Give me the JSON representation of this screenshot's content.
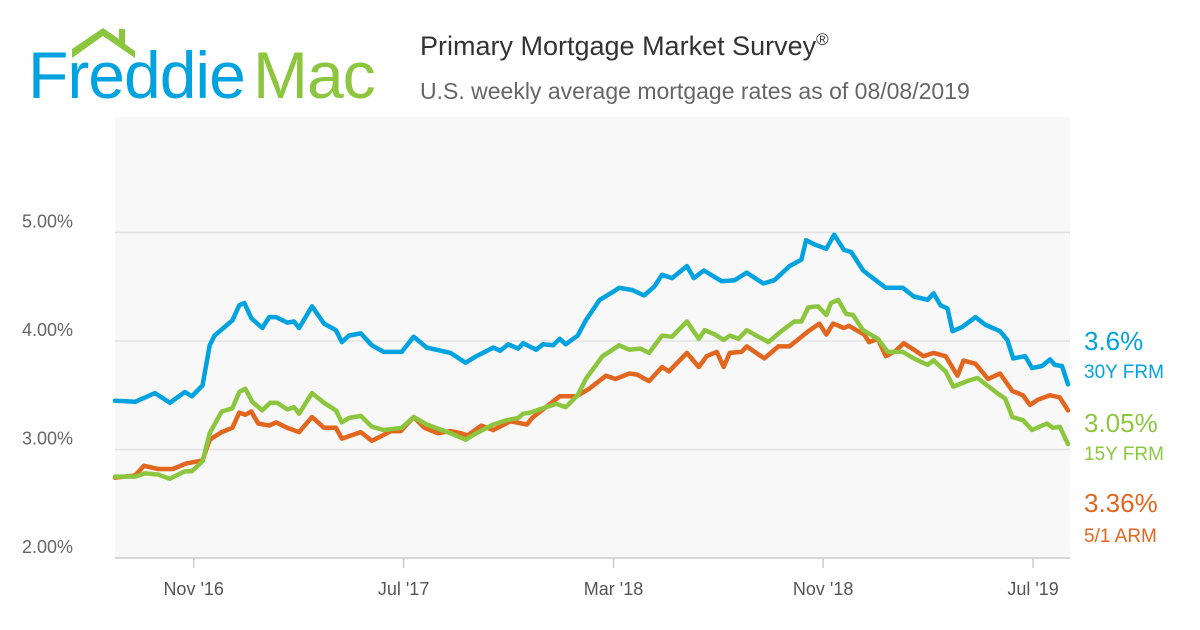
{
  "logo": {
    "text_part1": "Freddie",
    "text_part2": "Mac"
  },
  "header": {
    "title": "Primary Mortgage Market Survey",
    "registered": "®",
    "subtitle": "U.S. weekly average mortgage rates as of 08/08/2019"
  },
  "colors": {
    "frm30": "#00a3e0",
    "frm15": "#8cc63f",
    "arm51": "#e2661e",
    "logo_blue": "#00a3e0",
    "logo_green": "#8cc63f"
  },
  "chart_data": {
    "type": "line",
    "title": "Primary Mortgage Market Survey",
    "xlabel": "",
    "ylabel": "",
    "x_units": "decimal year",
    "xlim": [
      2016.583,
      2019.611
    ],
    "ylim": [
      2.0,
      5.3
    ],
    "grid": true,
    "y_ticks": [
      {
        "value": 2,
        "label": "2.00%"
      },
      {
        "value": 3,
        "label": "3.00%"
      },
      {
        "value": 4,
        "label": "4.00%"
      },
      {
        "value": 5,
        "label": "5.00%"
      }
    ],
    "x_ticks": [
      {
        "value": 2016.833,
        "label": "Nov '16"
      },
      {
        "value": 2017.5,
        "label": "Jul '17"
      },
      {
        "value": 2018.167,
        "label": "Mar '18"
      },
      {
        "value": 2018.833,
        "label": "Nov '18"
      },
      {
        "value": 2019.5,
        "label": "Jul '19"
      }
    ],
    "series": [
      {
        "name": "30Y FRM",
        "end_label": "3.6%",
        "color_key": "frm30",
        "points": [
          [
            2016.583,
            3.45
          ],
          [
            2016.647,
            3.44
          ],
          [
            2016.71,
            3.52
          ],
          [
            2016.757,
            3.43
          ],
          [
            2016.805,
            3.53
          ],
          [
            2016.827,
            3.49
          ],
          [
            2016.861,
            3.59
          ],
          [
            2016.884,
            3.96
          ],
          [
            2016.899,
            4.05
          ],
          [
            2016.956,
            4.19
          ],
          [
            2016.978,
            4.33
          ],
          [
            2016.994,
            4.35
          ],
          [
            2017.016,
            4.21
          ],
          [
            2017.051,
            4.12
          ],
          [
            2017.073,
            4.22
          ],
          [
            2017.095,
            4.22
          ],
          [
            2017.13,
            4.17
          ],
          [
            2017.152,
            4.18
          ],
          [
            2017.168,
            4.12
          ],
          [
            2017.209,
            4.32
          ],
          [
            2017.247,
            4.16
          ],
          [
            2017.285,
            4.1
          ],
          [
            2017.304,
            3.99
          ],
          [
            2017.326,
            4.05
          ],
          [
            2017.364,
            4.07
          ],
          [
            2017.399,
            3.96
          ],
          [
            2017.437,
            3.9
          ],
          [
            2017.494,
            3.9
          ],
          [
            2017.532,
            4.04
          ],
          [
            2017.573,
            3.94
          ],
          [
            2017.649,
            3.89
          ],
          [
            2017.697,
            3.8
          ],
          [
            2017.731,
            3.86
          ],
          [
            2017.785,
            3.94
          ],
          [
            2017.807,
            3.91
          ],
          [
            2017.832,
            3.97
          ],
          [
            2017.864,
            3.93
          ],
          [
            2017.88,
            3.98
          ],
          [
            2017.921,
            3.92
          ],
          [
            2017.943,
            3.97
          ],
          [
            2017.975,
            3.96
          ],
          [
            2017.996,
            4.02
          ],
          [
            2018.015,
            3.97
          ],
          [
            2018.053,
            4.05
          ],
          [
            2018.079,
            4.19
          ],
          [
            2018.123,
            4.38
          ],
          [
            2018.164,
            4.45
          ],
          [
            2018.185,
            4.49
          ],
          [
            2018.226,
            4.47
          ],
          [
            2018.264,
            4.42
          ],
          [
            2018.296,
            4.5
          ],
          [
            2018.321,
            4.61
          ],
          [
            2018.353,
            4.58
          ],
          [
            2018.4,
            4.69
          ],
          [
            2018.422,
            4.58
          ],
          [
            2018.454,
            4.65
          ],
          [
            2018.511,
            4.55
          ],
          [
            2018.552,
            4.56
          ],
          [
            2018.59,
            4.63
          ],
          [
            2018.643,
            4.53
          ],
          [
            2018.678,
            4.56
          ],
          [
            2018.726,
            4.69
          ],
          [
            2018.764,
            4.75
          ],
          [
            2018.779,
            4.93
          ],
          [
            2018.805,
            4.89
          ],
          [
            2018.843,
            4.85
          ],
          [
            2018.868,
            4.98
          ],
          [
            2018.899,
            4.84
          ],
          [
            2018.922,
            4.82
          ],
          [
            2018.96,
            4.65
          ],
          [
            2018.991,
            4.58
          ],
          [
            2019.032,
            4.49
          ],
          [
            2019.086,
            4.49
          ],
          [
            2019.121,
            4.41
          ],
          [
            2019.165,
            4.38
          ],
          [
            2019.184,
            4.44
          ],
          [
            2019.206,
            4.33
          ],
          [
            2019.228,
            4.3
          ],
          [
            2019.244,
            4.09
          ],
          [
            2019.275,
            4.13
          ],
          [
            2019.317,
            4.22
          ],
          [
            2019.348,
            4.15
          ],
          [
            2019.395,
            4.09
          ],
          [
            2019.418,
            4.01
          ],
          [
            2019.437,
            3.84
          ],
          [
            2019.475,
            3.86
          ],
          [
            2019.497,
            3.75
          ],
          [
            2019.528,
            3.77
          ],
          [
            2019.554,
            3.83
          ],
          [
            2019.569,
            3.78
          ],
          [
            2019.592,
            3.77
          ],
          [
            2019.611,
            3.6
          ]
        ]
      },
      {
        "name": "15Y FRM",
        "end_label": "3.05%",
        "color_key": "frm15",
        "points": [
          [
            2016.583,
            2.75
          ],
          [
            2016.647,
            2.75
          ],
          [
            2016.678,
            2.78
          ],
          [
            2016.72,
            2.77
          ],
          [
            2016.757,
            2.73
          ],
          [
            2016.805,
            2.8
          ],
          [
            2016.827,
            2.8
          ],
          [
            2016.861,
            2.89
          ],
          [
            2016.884,
            3.15
          ],
          [
            2016.922,
            3.35
          ],
          [
            2016.956,
            3.38
          ],
          [
            2016.978,
            3.53
          ],
          [
            2016.997,
            3.56
          ],
          [
            2017.019,
            3.44
          ],
          [
            2017.051,
            3.36
          ],
          [
            2017.076,
            3.43
          ],
          [
            2017.098,
            3.43
          ],
          [
            2017.13,
            3.37
          ],
          [
            2017.152,
            3.39
          ],
          [
            2017.168,
            3.33
          ],
          [
            2017.209,
            3.52
          ],
          [
            2017.247,
            3.43
          ],
          [
            2017.285,
            3.36
          ],
          [
            2017.304,
            3.25
          ],
          [
            2017.326,
            3.29
          ],
          [
            2017.364,
            3.31
          ],
          [
            2017.399,
            3.21
          ],
          [
            2017.437,
            3.18
          ],
          [
            2017.494,
            3.2
          ],
          [
            2017.532,
            3.3
          ],
          [
            2017.573,
            3.23
          ],
          [
            2017.649,
            3.15
          ],
          [
            2017.697,
            3.09
          ],
          [
            2017.731,
            3.15
          ],
          [
            2017.785,
            3.23
          ],
          [
            2017.828,
            3.27
          ],
          [
            2017.864,
            3.29
          ],
          [
            2017.88,
            3.33
          ],
          [
            2017.902,
            3.34
          ],
          [
            2017.943,
            3.38
          ],
          [
            2017.985,
            3.42
          ],
          [
            2018.015,
            3.39
          ],
          [
            2018.053,
            3.5
          ],
          [
            2018.079,
            3.65
          ],
          [
            2018.132,
            3.86
          ],
          [
            2018.164,
            3.92
          ],
          [
            2018.185,
            3.96
          ],
          [
            2018.217,
            3.92
          ],
          [
            2018.252,
            3.93
          ],
          [
            2018.28,
            3.89
          ],
          [
            2018.321,
            4.05
          ],
          [
            2018.353,
            4.04
          ],
          [
            2018.4,
            4.18
          ],
          [
            2018.438,
            4.02
          ],
          [
            2018.457,
            4.1
          ],
          [
            2018.489,
            4.06
          ],
          [
            2018.517,
            4.01
          ],
          [
            2018.536,
            4.05
          ],
          [
            2018.564,
            4.02
          ],
          [
            2018.59,
            4.1
          ],
          [
            2018.659,
            3.99
          ],
          [
            2018.7,
            4.09
          ],
          [
            2018.741,
            4.18
          ],
          [
            2018.764,
            4.18
          ],
          [
            2018.786,
            4.31
          ],
          [
            2018.817,
            4.32
          ],
          [
            2018.843,
            4.24
          ],
          [
            2018.858,
            4.35
          ],
          [
            2018.881,
            4.38
          ],
          [
            2018.906,
            4.25
          ],
          [
            2018.928,
            4.24
          ],
          [
            2018.96,
            4.1
          ],
          [
            2019.007,
            4.02
          ],
          [
            2019.038,
            3.9
          ],
          [
            2019.086,
            3.9
          ],
          [
            2019.121,
            3.84
          ],
          [
            2019.165,
            3.78
          ],
          [
            2019.184,
            3.82
          ],
          [
            2019.222,
            3.72
          ],
          [
            2019.247,
            3.58
          ],
          [
            2019.291,
            3.63
          ],
          [
            2019.323,
            3.66
          ],
          [
            2019.386,
            3.52
          ],
          [
            2019.411,
            3.47
          ],
          [
            2019.434,
            3.3
          ],
          [
            2019.468,
            3.27
          ],
          [
            2019.497,
            3.18
          ],
          [
            2019.544,
            3.24
          ],
          [
            2019.563,
            3.2
          ],
          [
            2019.585,
            3.21
          ],
          [
            2019.611,
            3.05
          ]
        ]
      },
      {
        "name": "5/1 ARM",
        "end_label": "3.36%",
        "color_key": "arm51",
        "points": [
          [
            2016.583,
            2.74
          ],
          [
            2016.647,
            2.76
          ],
          [
            2016.675,
            2.85
          ],
          [
            2016.72,
            2.82
          ],
          [
            2016.767,
            2.82
          ],
          [
            2016.808,
            2.87
          ],
          [
            2016.861,
            2.9
          ],
          [
            2016.884,
            3.09
          ],
          [
            2016.922,
            3.16
          ],
          [
            2016.956,
            3.2
          ],
          [
            2016.978,
            3.34
          ],
          [
            2016.997,
            3.32
          ],
          [
            2017.016,
            3.35
          ],
          [
            2017.038,
            3.24
          ],
          [
            2017.073,
            3.22
          ],
          [
            2017.095,
            3.25
          ],
          [
            2017.13,
            3.2
          ],
          [
            2017.168,
            3.16
          ],
          [
            2017.209,
            3.3
          ],
          [
            2017.247,
            3.2
          ],
          [
            2017.285,
            3.2
          ],
          [
            2017.304,
            3.1
          ],
          [
            2017.364,
            3.16
          ],
          [
            2017.399,
            3.08
          ],
          [
            2017.427,
            3.12
          ],
          [
            2017.459,
            3.17
          ],
          [
            2017.491,
            3.17
          ],
          [
            2017.532,
            3.3
          ],
          [
            2017.566,
            3.2
          ],
          [
            2017.608,
            3.15
          ],
          [
            2017.649,
            3.17
          ],
          [
            2017.681,
            3.15
          ],
          [
            2017.703,
            3.13
          ],
          [
            2017.747,
            3.22
          ],
          [
            2017.785,
            3.18
          ],
          [
            2017.839,
            3.26
          ],
          [
            2017.892,
            3.23
          ],
          [
            2017.908,
            3.29
          ],
          [
            2017.943,
            3.37
          ],
          [
            2017.996,
            3.49
          ],
          [
            2018.049,
            3.49
          ],
          [
            2018.09,
            3.56
          ],
          [
            2018.143,
            3.68
          ],
          [
            2018.173,
            3.65
          ],
          [
            2018.217,
            3.7
          ],
          [
            2018.242,
            3.69
          ],
          [
            2018.28,
            3.63
          ],
          [
            2018.321,
            3.76
          ],
          [
            2018.343,
            3.72
          ],
          [
            2018.4,
            3.89
          ],
          [
            2018.438,
            3.76
          ],
          [
            2018.463,
            3.86
          ],
          [
            2018.495,
            3.9
          ],
          [
            2018.517,
            3.76
          ],
          [
            2018.536,
            3.89
          ],
          [
            2018.574,
            3.9
          ],
          [
            2018.59,
            3.95
          ],
          [
            2018.646,
            3.84
          ],
          [
            2018.691,
            3.95
          ],
          [
            2018.726,
            3.95
          ],
          [
            2018.786,
            4.09
          ],
          [
            2018.821,
            4.16
          ],
          [
            2018.843,
            4.06
          ],
          [
            2018.865,
            4.16
          ],
          [
            2018.899,
            4.12
          ],
          [
            2018.915,
            4.14
          ],
          [
            2018.963,
            4.06
          ],
          [
            2018.979,
            3.99
          ],
          [
            2019.007,
            4.02
          ],
          [
            2019.032,
            3.86
          ],
          [
            2019.064,
            3.91
          ],
          [
            2019.089,
            3.98
          ],
          [
            2019.121,
            3.92
          ],
          [
            2019.152,
            3.86
          ],
          [
            2019.184,
            3.89
          ],
          [
            2019.222,
            3.86
          ],
          [
            2019.26,
            3.68
          ],
          [
            2019.279,
            3.82
          ],
          [
            2019.317,
            3.79
          ],
          [
            2019.357,
            3.65
          ],
          [
            2019.395,
            3.7
          ],
          [
            2019.434,
            3.54
          ],
          [
            2019.468,
            3.5
          ],
          [
            2019.49,
            3.41
          ],
          [
            2019.516,
            3.46
          ],
          [
            2019.554,
            3.5
          ],
          [
            2019.585,
            3.48
          ],
          [
            2019.611,
            3.36
          ]
        ]
      }
    ]
  }
}
